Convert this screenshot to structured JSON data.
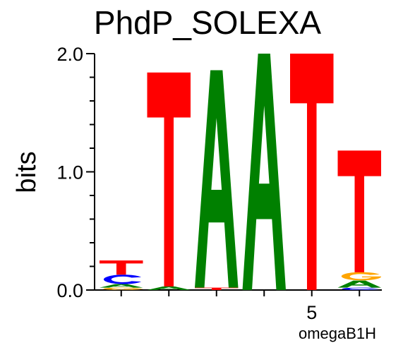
{
  "chart_data": {
    "type": "sequence-logo",
    "title": "PhdP_SOLEXA",
    "ylabel": "bits",
    "xlabel": "omegaB1H",
    "ylim": [
      0,
      2.0
    ],
    "yticks": [
      {
        "value": 0.0,
        "label": "0.0"
      },
      {
        "value": 1.0,
        "label": "1.0"
      },
      {
        "value": 2.0,
        "label": "2.0"
      }
    ],
    "xticks": [
      {
        "position": 5,
        "label": "5"
      }
    ],
    "positions": [
      1,
      2,
      3,
      4,
      5,
      6
    ],
    "colors": {
      "A": "#008000",
      "C": "#0000ff",
      "G": "#ffa500",
      "T": "#ff0000"
    },
    "stacks": [
      [
        {
          "letter": "G",
          "bits": 0.02
        },
        {
          "letter": "A",
          "bits": 0.03
        },
        {
          "letter": "C",
          "bits": 0.08
        },
        {
          "letter": "T",
          "bits": 0.12
        }
      ],
      [
        {
          "letter": "A",
          "bits": 0.03
        },
        {
          "letter": "T",
          "bits": 1.81
        }
      ],
      [
        {
          "letter": "T",
          "bits": 0.02
        },
        {
          "letter": "A",
          "bits": 1.84
        }
      ],
      [
        {
          "letter": "A",
          "bits": 2.0
        }
      ],
      [
        {
          "letter": "T",
          "bits": 2.0
        }
      ],
      [
        {
          "letter": "C",
          "bits": 0.02
        },
        {
          "letter": "A",
          "bits": 0.06
        },
        {
          "letter": "G",
          "bits": 0.07
        },
        {
          "letter": "T",
          "bits": 1.03
        }
      ]
    ]
  }
}
